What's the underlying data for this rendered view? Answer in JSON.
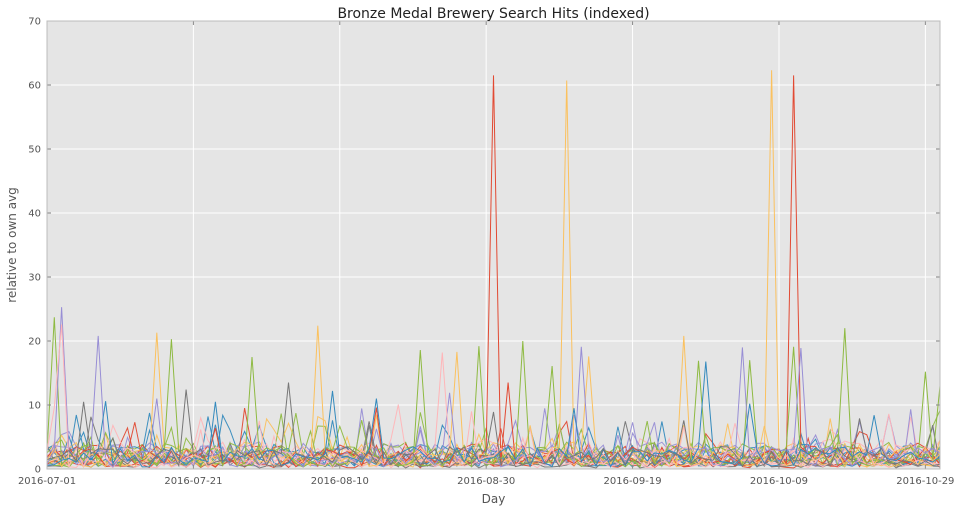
{
  "chart_data": {
    "type": "line",
    "title": "Bronze Medal Brewery Search Hits (indexed)",
    "xlabel": "Day",
    "ylabel": "relative to own avg",
    "x_start": "2016-07-01",
    "x_end": "2016-10-31",
    "x_tick_labels": [
      "2016-07-01",
      "2016-07-21",
      "2016-08-10",
      "2016-08-30",
      "2016-09-19",
      "2016-10-09",
      "2016-10-29"
    ],
    "y_tick_labels": [
      "0",
      "10",
      "20",
      "30",
      "40",
      "50",
      "60",
      "70"
    ],
    "ylim": [
      0,
      70
    ],
    "grid": true,
    "legend": "none",
    "series_colors": [
      "#e24a33",
      "#348abd",
      "#988ed5",
      "#777777",
      "#fbc15e",
      "#8eba42",
      "#ffb5b8"
    ],
    "series": [
      {
        "color": "#e24a33",
        "peaks": [
          [
            "2016-08-31",
            61.5
          ],
          [
            "2016-10-11",
            61.5
          ],
          [
            "2016-07-24",
            6.4
          ],
          [
            "2016-08-15",
            9.6
          ],
          [
            "2016-09-02",
            13.5
          ]
        ]
      },
      {
        "color": "#fbc15e",
        "peaks": [
          [
            "2016-09-10",
            60.7
          ],
          [
            "2016-10-08",
            62.3
          ],
          [
            "2016-07-16",
            21.3
          ],
          [
            "2016-08-07",
            22.4
          ],
          [
            "2016-08-26",
            18.3
          ],
          [
            "2016-09-26",
            20.8
          ],
          [
            "2016-09-13",
            17.6
          ]
        ]
      },
      {
        "color": "#8eba42",
        "peaks": [
          [
            "2016-07-02",
            23.7
          ],
          [
            "2016-07-18",
            20.3
          ],
          [
            "2016-07-29",
            17.5
          ],
          [
            "2016-08-21",
            18.6
          ],
          [
            "2016-08-29",
            19.2
          ],
          [
            "2016-09-04",
            20.0
          ],
          [
            "2016-09-08",
            16.1
          ],
          [
            "2016-09-28",
            16.9
          ],
          [
            "2016-10-05",
            17.0
          ],
          [
            "2016-10-11",
            19.1
          ],
          [
            "2016-10-18",
            22.0
          ],
          [
            "2016-10-29",
            15.2
          ],
          [
            "2016-10-31",
            13.0
          ]
        ]
      },
      {
        "color": "#988ed5",
        "peaks": [
          [
            "2016-07-03",
            25.3
          ],
          [
            "2016-07-08",
            20.8
          ],
          [
            "2016-07-16",
            11.0
          ],
          [
            "2016-08-25",
            11.9
          ],
          [
            "2016-09-12",
            19.1
          ],
          [
            "2016-10-04",
            19.0
          ],
          [
            "2016-10-12",
            18.9
          ]
        ]
      },
      {
        "color": "#ffb5b8",
        "peaks": [
          [
            "2016-07-03",
            22.6
          ],
          [
            "2016-07-02",
            9.6
          ],
          [
            "2016-08-24",
            18.2
          ],
          [
            "2016-08-28",
            9.0
          ]
        ]
      },
      {
        "color": "#348abd",
        "peaks": [
          [
            "2016-07-09",
            10.6
          ],
          [
            "2016-07-24",
            10.5
          ],
          [
            "2016-08-09",
            12.2
          ],
          [
            "2016-08-15",
            11.0
          ],
          [
            "2016-09-11",
            9.5
          ],
          [
            "2016-09-29",
            16.8
          ],
          [
            "2016-10-05",
            10.2
          ],
          [
            "2016-10-22",
            8.4
          ]
        ]
      },
      {
        "color": "#777777",
        "peaks": [
          [
            "2016-07-06",
            10.5
          ],
          [
            "2016-07-20",
            12.4
          ],
          [
            "2016-08-03",
            13.5
          ],
          [
            "2016-08-31",
            8.9
          ],
          [
            "2016-09-26",
            7.6
          ],
          [
            "2016-10-20",
            7.9
          ]
        ]
      }
    ]
  }
}
